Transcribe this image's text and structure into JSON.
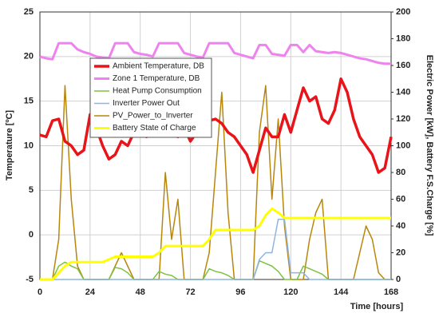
{
  "chart_data": {
    "type": "line",
    "xlabel": "Time [hours]",
    "ylabel": "Temperature [ºC]",
    "y2label": "Electric Power [kW], Battery F.S.Charge [%]",
    "x": [
      0,
      3,
      6,
      9,
      12,
      15,
      18,
      21,
      24,
      27,
      30,
      33,
      36,
      39,
      42,
      45,
      48,
      51,
      54,
      57,
      60,
      63,
      66,
      69,
      72,
      75,
      78,
      81,
      84,
      87,
      90,
      93,
      96,
      99,
      102,
      105,
      108,
      111,
      114,
      117,
      120,
      123,
      126,
      129,
      132,
      135,
      138,
      141,
      144,
      147,
      150,
      153,
      156,
      159,
      162,
      165,
      168
    ],
    "xlim": [
      0,
      168
    ],
    "xticks": [
      0,
      24,
      48,
      72,
      96,
      120,
      144,
      168
    ],
    "ylim": [
      -5,
      25
    ],
    "yticks": [
      -5,
      0,
      5,
      10,
      15,
      20,
      25
    ],
    "y2lim": [
      0,
      200
    ],
    "y2ticks": [
      0,
      20,
      40,
      60,
      80,
      100,
      120,
      140,
      160,
      180,
      200
    ],
    "grid": true,
    "legend": "upper left",
    "series": [
      {
        "name": "Ambient Temperature, DB",
        "color": "#e8141a",
        "axis": "y",
        "values": [
          11.2,
          11,
          12.8,
          13,
          10.5,
          10,
          9,
          9.5,
          13.5,
          12,
          10,
          8.5,
          9,
          10.5,
          10,
          11.5,
          12,
          11,
          11.5,
          12.5,
          13,
          11.5,
          11,
          12,
          10.5,
          11.5,
          12,
          12.8,
          13,
          12.5,
          11.5,
          11,
          10,
          9,
          7,
          9.5,
          12,
          11,
          11,
          13.5,
          11.5,
          14,
          16.5,
          15,
          15.5,
          13,
          12.5,
          14,
          17.5,
          16,
          13,
          11,
          10,
          9,
          7,
          7.5,
          11
        ]
      },
      {
        "name": "Zone 1 Temperature, DB",
        "color": "#ee82ee",
        "axis": "y",
        "values": [
          20,
          19.8,
          19.7,
          21.5,
          21.5,
          21.5,
          20.8,
          20.5,
          20.3,
          20,
          19.9,
          19.8,
          21.5,
          21.5,
          21.5,
          20.5,
          20.3,
          20.2,
          20,
          21.5,
          21.5,
          21.5,
          21.5,
          20.4,
          20.2,
          20,
          19.9,
          21.5,
          21.5,
          21.5,
          21.5,
          20.4,
          20.2,
          20,
          19.8,
          21.3,
          21.3,
          20.3,
          20.2,
          20.1,
          21.3,
          21.3,
          20.5,
          21.3,
          20.6,
          20.5,
          20.4,
          20.5,
          20.4,
          20.2,
          20,
          19.8,
          19.7,
          19.5,
          19.3,
          19.2,
          19.2
        ]
      },
      {
        "name": "Heat Pump Consumption",
        "color": "#7dc242",
        "axis": "y2",
        "values": [
          0,
          0,
          0,
          10,
          13,
          10,
          8,
          0,
          0,
          0,
          0,
          0,
          9,
          8,
          5,
          0,
          0,
          0,
          0,
          6,
          4,
          3,
          0,
          0,
          0,
          0,
          0,
          8,
          6,
          5,
          3,
          0,
          0,
          0,
          0,
          14,
          12,
          10,
          6,
          0,
          0,
          0,
          10,
          8,
          6,
          4,
          0,
          0,
          0,
          0,
          0,
          0,
          0,
          0,
          0,
          0,
          0
        ]
      },
      {
        "name": "Inverter Power Out",
        "color": "#8db4e2",
        "axis": "y2",
        "values": [
          0,
          0,
          0,
          0,
          0,
          0,
          0,
          0,
          0,
          0,
          0,
          0,
          0,
          0,
          0,
          0,
          0,
          0,
          0,
          0,
          0,
          0,
          0,
          0,
          0,
          0,
          0,
          0,
          0,
          0,
          0,
          0,
          0,
          0,
          0,
          15,
          20,
          20,
          45,
          45,
          5,
          5,
          5,
          0,
          0,
          0,
          0,
          0,
          0,
          0,
          0,
          0,
          0,
          0,
          0,
          0,
          0
        ]
      },
      {
        "name": "PV_Power_to_Inverter",
        "color": "#b8860b",
        "axis": "y2",
        "values": [
          0,
          0,
          0,
          30,
          145,
          60,
          10,
          0,
          0,
          0,
          0,
          0,
          10,
          20,
          10,
          0,
          0,
          0,
          0,
          0,
          80,
          30,
          60,
          0,
          0,
          0,
          0,
          20,
          80,
          140,
          50,
          0,
          0,
          0,
          0,
          110,
          145,
          60,
          120,
          40,
          0,
          0,
          0,
          30,
          50,
          60,
          0,
          0,
          0,
          0,
          0,
          20,
          40,
          30,
          5,
          0,
          0
        ]
      },
      {
        "name": "Battery State of Charge",
        "color": "#ffff00",
        "axis": "y2",
        "values": [
          0,
          0,
          0,
          5,
          10,
          13,
          13,
          13,
          13,
          13,
          13,
          15,
          17,
          17,
          17,
          17,
          17,
          17,
          17,
          20,
          25,
          25,
          25,
          25,
          25,
          25,
          25,
          30,
          37,
          37,
          37,
          37,
          37,
          37,
          37,
          40,
          48,
          53,
          50,
          46,
          46,
          46,
          46,
          46,
          46,
          46,
          46,
          46,
          46,
          46,
          46,
          46,
          46,
          46,
          46,
          46,
          46
        ]
      }
    ]
  }
}
